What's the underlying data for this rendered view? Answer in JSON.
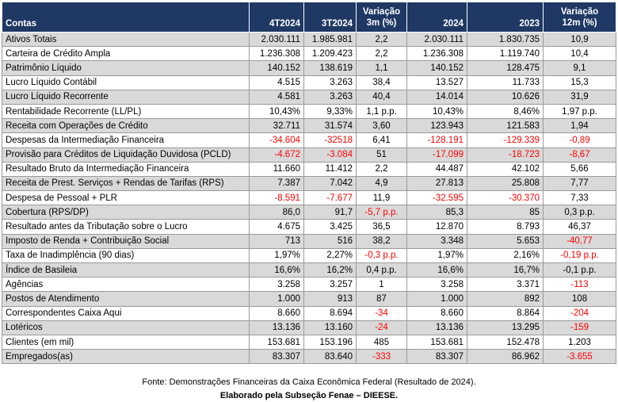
{
  "table": {
    "headers": {
      "contas": "Contas",
      "c1": "4T2024",
      "c2": "3T2024",
      "c3": [
        "Variação",
        "3m (%)"
      ],
      "c4": "2024",
      "c5": "2023",
      "c6": [
        "Variação",
        "12m (%)"
      ]
    },
    "rows": [
      {
        "label": "Ativos Totais",
        "v": [
          "2.030.111",
          "1.985.981",
          "2,2",
          "2.030.111",
          "1.830.735",
          "10,9"
        ],
        "neg": [
          false,
          false,
          false,
          false,
          false,
          false
        ]
      },
      {
        "label": "Carteira de Crédito Ampla",
        "v": [
          "1.236.308",
          "1.209.423",
          "2,2",
          "1.236.308",
          "1.119.740",
          "10,4"
        ],
        "neg": [
          false,
          false,
          false,
          false,
          false,
          false
        ]
      },
      {
        "label": "Patrimônio Líquido",
        "v": [
          "140.152",
          "138.619",
          "1,1",
          "140.152",
          "128.475",
          "9,1"
        ],
        "neg": [
          false,
          false,
          false,
          false,
          false,
          false
        ]
      },
      {
        "label": "Lucro Líquido Contábil",
        "v": [
          "4.515",
          "3.263",
          "38,4",
          "13.527",
          "11.733",
          "15,3"
        ],
        "neg": [
          false,
          false,
          false,
          false,
          false,
          false
        ]
      },
      {
        "label": "Lucro Líquido Recorrente",
        "v": [
          "4.581",
          "3.263",
          "40,4",
          "14.014",
          "10.626",
          "31,9"
        ],
        "neg": [
          false,
          false,
          false,
          false,
          false,
          false
        ]
      },
      {
        "label": "Rentabilidade Recorrente (LL/PL)",
        "v": [
          "10,43%",
          "9,33%",
          "1,1 p.p.",
          "10,43%",
          "8,46%",
          "1,97 p.p."
        ],
        "neg": [
          false,
          false,
          false,
          false,
          false,
          false
        ]
      },
      {
        "label": "Receita com Operações de Crédito",
        "v": [
          "32.711",
          "31.574",
          "3,60",
          "123.943",
          "121.583",
          "1,94"
        ],
        "neg": [
          false,
          false,
          false,
          false,
          false,
          false
        ]
      },
      {
        "label": "Despesas da Intermediação Financeira",
        "v": [
          "-34.604",
          "-32518",
          "6,41",
          "-128.191",
          "-129.339",
          "-0,89"
        ],
        "neg": [
          true,
          true,
          false,
          true,
          true,
          true
        ]
      },
      {
        "label": "Provisão para Créditos de Liquidação Duvidosa (PCLD)",
        "v": [
          "-4.672",
          "-3.084",
          "51",
          "-17.099",
          "-18.723",
          "-8,67"
        ],
        "neg": [
          true,
          true,
          false,
          true,
          true,
          true
        ]
      },
      {
        "label": "Resultado Bruto da Intermediação Financeira",
        "v": [
          "11.660",
          "11.412",
          "2,2",
          "44.487",
          "42.102",
          "5,66"
        ],
        "neg": [
          false,
          false,
          false,
          false,
          false,
          false
        ]
      },
      {
        "label": "Receita de Prest. Serviços + Rendas de Tarifas (RPS)",
        "v": [
          "7.387",
          "7.042",
          "4,9",
          "27.813",
          "25.808",
          "7,77"
        ],
        "neg": [
          false,
          false,
          false,
          false,
          false,
          false
        ]
      },
      {
        "label": "Despesa de Pessoal + PLR",
        "v": [
          "-8.591",
          "-7.677",
          "11,9",
          "-32.595",
          "-30.370",
          "7,33"
        ],
        "neg": [
          true,
          true,
          false,
          true,
          true,
          false
        ]
      },
      {
        "label": "Cobertura (RPS/DP)",
        "v": [
          "86,0",
          "91,7",
          "-5,7 p.p.",
          "85,3",
          "85",
          "0,3 p.p."
        ],
        "neg": [
          false,
          false,
          true,
          false,
          false,
          false
        ]
      },
      {
        "label": "Resultado antes da Tributação sobre o Lucro",
        "v": [
          "4.675",
          "3.425",
          "36,5",
          "12.870",
          "8.793",
          "46,37"
        ],
        "neg": [
          false,
          false,
          false,
          false,
          false,
          false
        ]
      },
      {
        "label": "Imposto de Renda + Contribuição Social",
        "v": [
          "713",
          "516",
          "38,2",
          "3.348",
          "5.653",
          "-40,77"
        ],
        "neg": [
          false,
          false,
          false,
          false,
          false,
          true
        ]
      },
      {
        "label": "Taxa de Inadimplência (90 dias)",
        "v": [
          "1,97%",
          "2,27%",
          "-0,3 p.p.",
          "1,97%",
          "2,16%",
          "-0,19 p.p."
        ],
        "neg": [
          false,
          false,
          true,
          false,
          false,
          true
        ]
      },
      {
        "label": "Índice de Basileia",
        "v": [
          "16,6%",
          "16,2%",
          "0,4 p.p.",
          "16,6%",
          "16,7%",
          "-0,1 p.p."
        ],
        "neg": [
          false,
          false,
          false,
          false,
          false,
          false
        ]
      },
      {
        "label": "Agências",
        "v": [
          "3.258",
          "3.257",
          "1",
          "3.258",
          "3.371",
          "-113"
        ],
        "neg": [
          false,
          false,
          false,
          false,
          false,
          true
        ]
      },
      {
        "label": "Postos de Atendimento",
        "v": [
          "1.000",
          "913",
          "87",
          "1.000",
          "892",
          "108"
        ],
        "neg": [
          false,
          false,
          false,
          false,
          false,
          false
        ]
      },
      {
        "label": "Correspondentes Caixa Aqui",
        "v": [
          "8.660",
          "8.694",
          "-34",
          "8.660",
          "8.864",
          "-204"
        ],
        "neg": [
          false,
          false,
          true,
          false,
          false,
          true
        ]
      },
      {
        "label": "Lotéricos",
        "v": [
          "13.136",
          "13.160",
          "-24",
          "13.136",
          "13.295",
          "-159"
        ],
        "neg": [
          false,
          false,
          true,
          false,
          false,
          true
        ]
      },
      {
        "label": "Clientes (em mil)",
        "v": [
          "153.681",
          "153.196",
          "485",
          "153.681",
          "152.478",
          "1.203"
        ],
        "neg": [
          false,
          false,
          false,
          false,
          false,
          false
        ]
      },
      {
        "label": "Empregados(as)",
        "v": [
          "83.307",
          "83.640",
          "-333",
          "83.307",
          "86.962",
          "-3.655"
        ],
        "neg": [
          false,
          false,
          true,
          false,
          false,
          true
        ]
      }
    ]
  },
  "footer": {
    "source": "Fonte: Demonstrações Financeiras da Caixa Econômica Federal (Resultado de 2024).",
    "author": "Elaborado pela Subseção Fenae – DIEESE."
  }
}
